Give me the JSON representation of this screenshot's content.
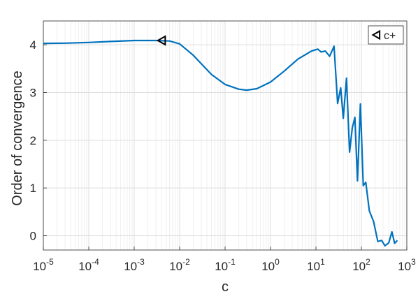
{
  "chart_data": {
    "type": "line",
    "title": "",
    "xlabel": "c",
    "ylabel": "Order of convergence",
    "xscale": "log",
    "xlim": [
      1e-05,
      1000
    ],
    "ylim": [
      -0.3,
      4.5
    ],
    "grid": true,
    "legend_position": "top-right",
    "x_ticks": [
      {
        "value": 1e-05,
        "base": "10",
        "exp": "-5"
      },
      {
        "value": 0.0001,
        "base": "10",
        "exp": "-4"
      },
      {
        "value": 0.001,
        "base": "10",
        "exp": "-3"
      },
      {
        "value": 0.01,
        "base": "10",
        "exp": "-2"
      },
      {
        "value": 0.1,
        "base": "10",
        "exp": "-1"
      },
      {
        "value": 1,
        "base": "10",
        "exp": "0"
      },
      {
        "value": 10,
        "base": "10",
        "exp": "1"
      },
      {
        "value": 100,
        "base": "10",
        "exp": "2"
      },
      {
        "value": 1000,
        "base": "10",
        "exp": "3"
      }
    ],
    "y_ticks": [
      {
        "value": 0,
        "label": "0"
      },
      {
        "value": 1,
        "label": "1"
      },
      {
        "value": 2,
        "label": "2"
      },
      {
        "value": 3,
        "label": "3"
      },
      {
        "value": 4,
        "label": "4"
      }
    ],
    "series": [
      {
        "color": "#0072BD",
        "points": [
          [
            1e-05,
            4.03
          ],
          [
            3e-05,
            4.035
          ],
          [
            0.0001,
            4.05
          ],
          [
            0.0003,
            4.07
          ],
          [
            0.001,
            4.09
          ],
          [
            0.003,
            4.09
          ],
          [
            0.006,
            4.08
          ],
          [
            0.01,
            4.02
          ],
          [
            0.02,
            3.78
          ],
          [
            0.05,
            3.38
          ],
          [
            0.1,
            3.17
          ],
          [
            0.2,
            3.07
          ],
          [
            0.3,
            3.05
          ],
          [
            0.5,
            3.08
          ],
          [
            1,
            3.22
          ],
          [
            2,
            3.45
          ],
          [
            4,
            3.7
          ],
          [
            8,
            3.87
          ],
          [
            11,
            3.91
          ],
          [
            13,
            3.85
          ],
          [
            16,
            3.87
          ],
          [
            20,
            3.76
          ],
          [
            25,
            3.97
          ],
          [
            30,
            2.77
          ],
          [
            35,
            3.1
          ],
          [
            40,
            2.46
          ],
          [
            47,
            3.3
          ],
          [
            55,
            1.75
          ],
          [
            63,
            2.26
          ],
          [
            72,
            2.48
          ],
          [
            82,
            1.15
          ],
          [
            95,
            2.76
          ],
          [
            110,
            1.05
          ],
          [
            125,
            1.12
          ],
          [
            150,
            0.52
          ],
          [
            185,
            0.3
          ],
          [
            230,
            -0.12
          ],
          [
            280,
            -0.1
          ],
          [
            330,
            -0.21
          ],
          [
            400,
            -0.15
          ],
          [
            470,
            0.08
          ],
          [
            540,
            -0.16
          ],
          [
            620,
            -0.1
          ]
        ]
      }
    ],
    "markers": [
      {
        "x": 0.0041,
        "y": 4.09,
        "shape": "left-triangle",
        "color": "#000000"
      }
    ],
    "legend": [
      {
        "label": "c+",
        "shape": "left-triangle",
        "color": "#000000"
      }
    ]
  }
}
